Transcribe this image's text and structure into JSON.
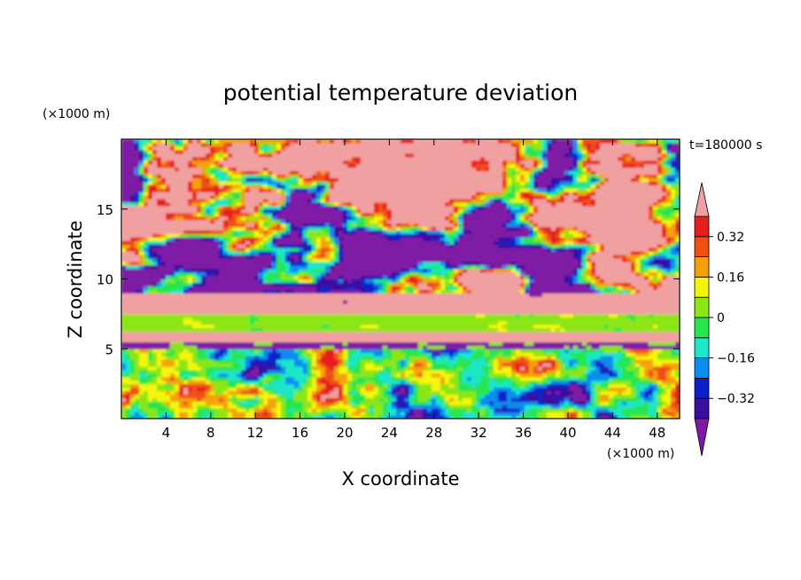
{
  "chart_data": {
    "type": "heatmap",
    "title": "potential temperature deviation",
    "xlabel": "X coordinate",
    "ylabel": "Z coordinate",
    "x_unit": "(×1000 m)",
    "y_unit": "(×1000 m)",
    "time_label": "t=180000 s",
    "xlim": [
      0,
      50
    ],
    "ylim": [
      0,
      20
    ],
    "x_ticks": [
      4,
      8,
      12,
      16,
      20,
      24,
      28,
      32,
      36,
      40,
      44,
      48
    ],
    "y_ticks": [
      5,
      10,
      15
    ],
    "colorbar": {
      "levels": [
        -0.4,
        -0.32,
        -0.24,
        -0.16,
        -0.08,
        0,
        0.08,
        0.16,
        0.24,
        0.32,
        0.4
      ],
      "tick_labels": [
        "0.32",
        "0.16",
        "0",
        "−0.16",
        "−0.32"
      ],
      "tick_values": [
        0.32,
        0.16,
        0,
        -0.16,
        -0.32
      ],
      "colors": [
        "#7f1aa5",
        "#3a0fa0",
        "#0d20c8",
        "#0a8cf0",
        "#1ee6c8",
        "#28e650",
        "#8ce614",
        "#f5f50a",
        "#f5a00a",
        "#f05014",
        "#e61e1e",
        "#f0a0a0"
      ]
    },
    "layers": [
      {
        "z": [
          15.5,
          20
        ],
        "description_value": "mixed",
        "dominant_values": [
          0.45,
          -0.45
        ]
      },
      {
        "z": [
          9,
          15.5
        ],
        "dominant_values": [
          0.45,
          -0.45
        ]
      },
      {
        "z": [
          7.6,
          9
        ],
        "dominant_value": 0.45
      },
      {
        "z": [
          6.3,
          7.6
        ],
        "dominant_value": 0.05
      },
      {
        "z": [
          5.6,
          6.3
        ],
        "dominant_value": 0.45
      },
      {
        "z": [
          5.0,
          5.6
        ],
        "dominant_value": -0.45
      },
      {
        "z": [
          0,
          5.0
        ],
        "dominant_value": 0.0
      }
    ]
  }
}
